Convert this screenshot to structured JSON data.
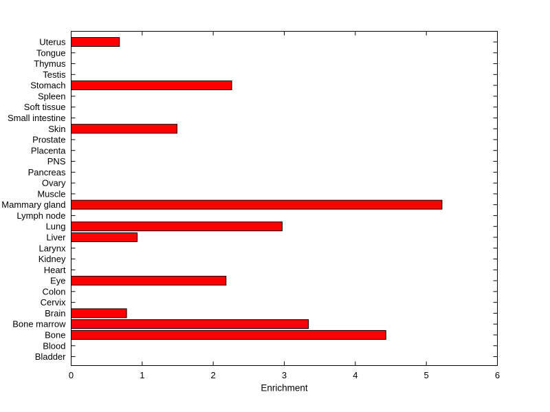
{
  "figure": {
    "background": "#FFFFFF",
    "axis_color": "#000000"
  },
  "chart_data": {
    "type": "bar",
    "orientation": "horizontal",
    "title": "",
    "xlabel": "Enrichment",
    "ylabel": "",
    "xlim": [
      0,
      6
    ],
    "xticks": [
      0,
      1,
      2,
      3,
      4,
      5,
      6
    ],
    "grid": false,
    "legend": null,
    "box": true,
    "tick_direction": "in",
    "bar_color": "#FF0000",
    "bar_edge_color": "#000000",
    "categories_order": "top-to-bottom",
    "categories": [
      "Uterus",
      "Tongue",
      "Thymus",
      "Testis",
      "Stomach",
      "Spleen",
      "Soft tissue",
      "Small intestine",
      "Skin",
      "Prostate",
      "Placenta",
      "PNS",
      "Pancreas",
      "Ovary",
      "Muscle",
      "Mammary gland",
      "Lymph node",
      "Lung",
      "Liver",
      "Larynx",
      "Kidney",
      "Heart",
      "Eye",
      "Colon",
      "Cervix",
      "Brain",
      "Bone marrow",
      "Bone",
      "Blood",
      "Bladder"
    ],
    "values": [
      0.68,
      0,
      0,
      0,
      2.26,
      0,
      0,
      0,
      1.49,
      0,
      0,
      0,
      0,
      0,
      0,
      5.22,
      0,
      2.97,
      0.93,
      0,
      0,
      0,
      2.18,
      0,
      0,
      0.78,
      3.34,
      4.43,
      0,
      0
    ]
  }
}
